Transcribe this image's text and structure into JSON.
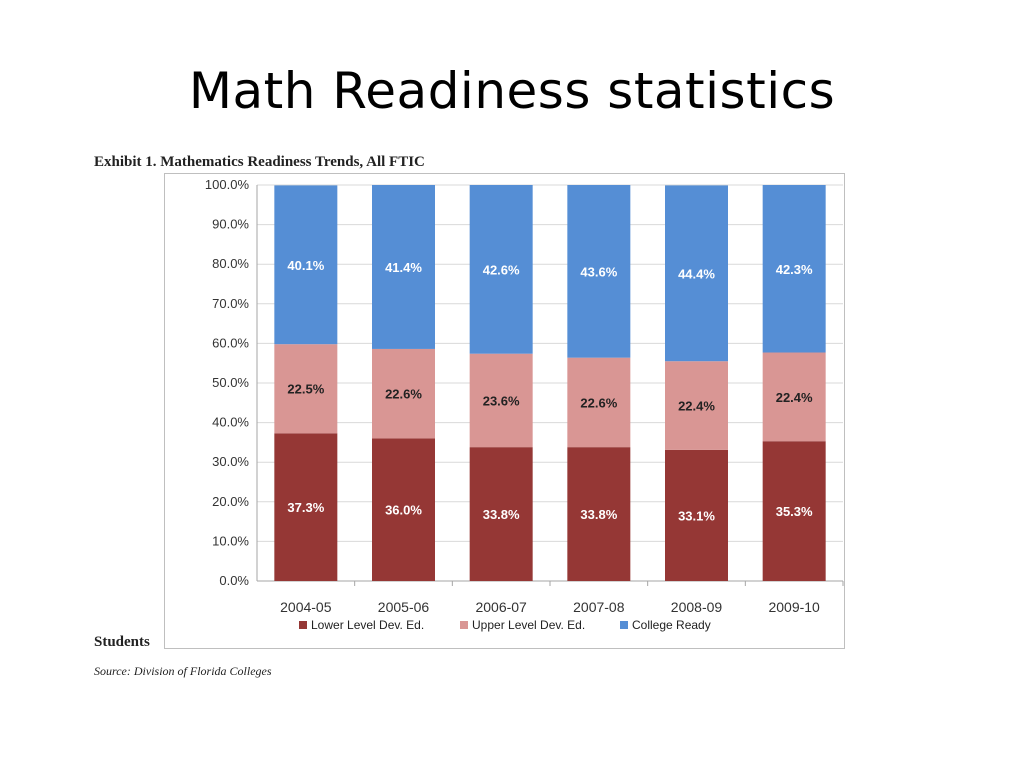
{
  "slide": {
    "title": "Math Readiness statistics"
  },
  "exhibit_title": "Exhibit 1.  Mathematics Readiness Trends, All FTIC",
  "students_label": "Students",
  "source_note": "Source: Division of Florida Colleges",
  "chart_data": {
    "type": "bar",
    "stacked": true,
    "title": "",
    "xlabel": "",
    "ylabel": "",
    "ylim": [
      0,
      100
    ],
    "y_ticks": [
      "0.0%",
      "10.0%",
      "20.0%",
      "30.0%",
      "40.0%",
      "50.0%",
      "60.0%",
      "70.0%",
      "80.0%",
      "90.0%",
      "100.0%"
    ],
    "y_tick_values": [
      0,
      10,
      20,
      30,
      40,
      50,
      60,
      70,
      80,
      90,
      100
    ],
    "categories": [
      "2004-05",
      "2005-06",
      "2006-07",
      "2007-08",
      "2008-09",
      "2009-10"
    ],
    "grid": true,
    "legend_position": "bottom",
    "series": [
      {
        "name": "Lower Level Dev. Ed.",
        "color": "#953735",
        "values": [
          37.3,
          36.0,
          33.8,
          33.8,
          33.1,
          35.3
        ],
        "labels": [
          "37.3%",
          "36.0%",
          "33.8%",
          "33.8%",
          "33.1%",
          "35.3%"
        ],
        "label_color": "#ffffff"
      },
      {
        "name": "Upper Level Dev. Ed.",
        "color": "#d99694",
        "values": [
          22.5,
          22.6,
          23.6,
          22.6,
          22.4,
          22.4
        ],
        "labels": [
          "22.5%",
          "22.6%",
          "23.6%",
          "22.6%",
          "22.4%",
          "22.4%"
        ],
        "label_color": "#222222"
      },
      {
        "name": "College Ready",
        "color": "#558ed5",
        "values": [
          40.1,
          41.4,
          42.6,
          43.6,
          44.4,
          42.3
        ],
        "labels": [
          "40.1%",
          "41.4%",
          "42.6%",
          "43.6%",
          "44.4%",
          "42.3%"
        ],
        "label_color": "#ffffff"
      }
    ]
  }
}
